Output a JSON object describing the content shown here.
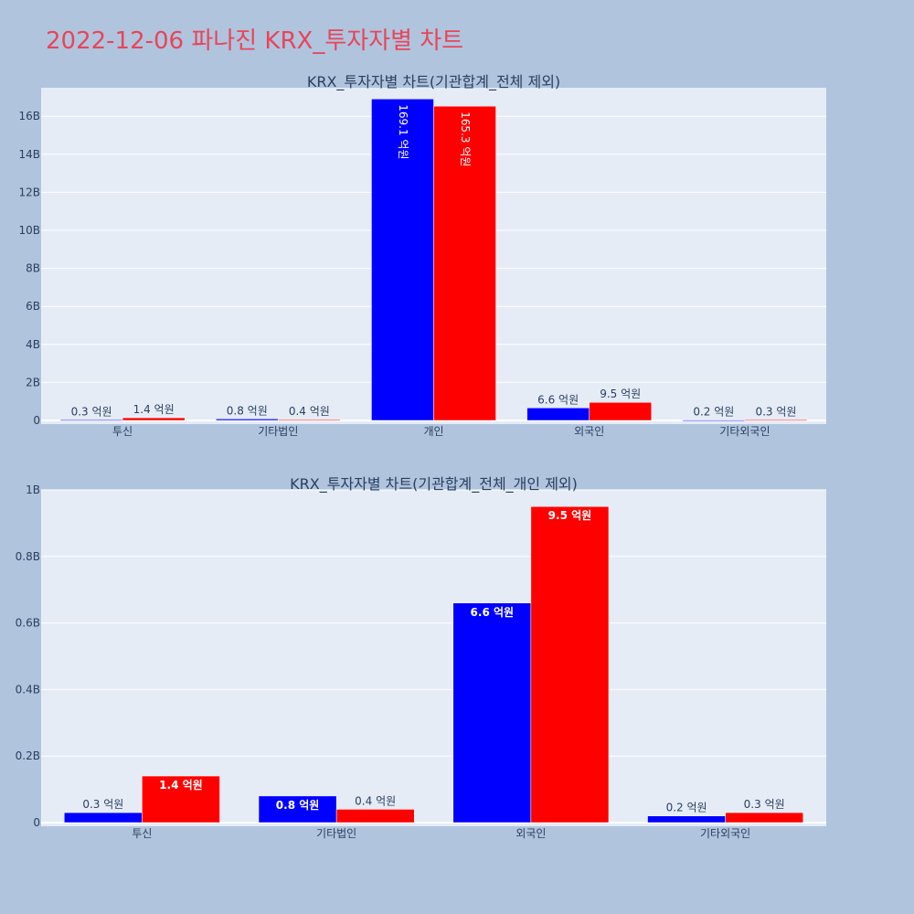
{
  "page_title": "2022-12-06 파나진 KRX_투자자별 차트",
  "colors": {
    "background": "#b0c4de",
    "plot_bg": "#e5ecf6",
    "title": "#e8455a",
    "series_a": "#0000ff",
    "series_b": "#ff0000",
    "text": "#2a3f5f"
  },
  "chart_data": [
    {
      "type": "bar",
      "title": "KRX_투자자별 차트(기관합계_전체 제외)",
      "categories": [
        "투신",
        "기타법인",
        "개인",
        "외국인",
        "기타외국인"
      ],
      "series": [
        {
          "color": "#0000ff",
          "values": [
            30000000,
            80000000,
            16910000000,
            660000000,
            20000000
          ],
          "labels": [
            "0.3 억원",
            "0.8 억원",
            "169.1 억원",
            "6.6 억원",
            "0.2 억원"
          ]
        },
        {
          "color": "#ff0000",
          "values": [
            140000000,
            40000000,
            16530000000,
            950000000,
            30000000
          ],
          "labels": [
            "1.4 억원",
            "0.4 억원",
            "165.3 억원",
            "9.5 억원",
            "0.3 억원"
          ]
        }
      ],
      "ylim": [
        0,
        17500000000
      ],
      "yticks": [
        0,
        2000000000,
        4000000000,
        6000000000,
        8000000000,
        10000000000,
        12000000000,
        14000000000,
        16000000000
      ],
      "ytick_labels": [
        "0",
        "2B",
        "4B",
        "6B",
        "8B",
        "10B",
        "12B",
        "14B",
        "16B"
      ],
      "grid": true
    },
    {
      "type": "bar",
      "title": "KRX_투자자별 차트(기관합계_전체_개인 제외)",
      "categories": [
        "투신",
        "기타법인",
        "외국인",
        "기타외국인"
      ],
      "series": [
        {
          "color": "#0000ff",
          "values": [
            30000000,
            80000000,
            660000000,
            20000000
          ],
          "labels": [
            "0.3 억원",
            "0.8 억원",
            "6.6 억원",
            "0.2 억원"
          ]
        },
        {
          "color": "#ff0000",
          "values": [
            140000000,
            40000000,
            950000000,
            30000000
          ],
          "labels": [
            "1.4 억원",
            "0.4 억원",
            "9.5 억원",
            "0.3 억원"
          ]
        }
      ],
      "ylim": [
        0,
        1000000000
      ],
      "yticks": [
        0,
        200000000,
        400000000,
        600000000,
        800000000,
        1000000000
      ],
      "ytick_labels": [
        "0",
        "0.2B",
        "0.4B",
        "0.6B",
        "0.8B",
        "1B"
      ],
      "grid": true
    }
  ]
}
